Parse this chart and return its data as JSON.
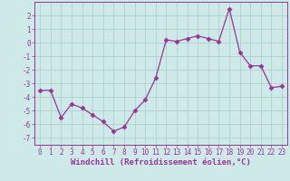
{
  "x": [
    0,
    1,
    2,
    3,
    4,
    5,
    6,
    7,
    8,
    9,
    10,
    11,
    12,
    13,
    14,
    15,
    16,
    17,
    18,
    19,
    20,
    21,
    22,
    23
  ],
  "y": [
    -3.5,
    -3.5,
    -5.5,
    -4.5,
    -4.8,
    -5.3,
    -5.8,
    -6.5,
    -6.2,
    -5.0,
    -4.2,
    -2.6,
    0.2,
    0.1,
    0.3,
    0.5,
    0.3,
    0.1,
    2.5,
    -0.7,
    -1.7,
    -1.7,
    -3.3,
    -3.2
  ],
  "line_color": "#993399",
  "marker": "D",
  "marker_size": 2.5,
  "linewidth": 0.9,
  "xlabel": "Windchill (Refroidissement éolien,°C)",
  "xlabel_fontsize": 6.5,
  "ylim": [
    -7.5,
    3.0
  ],
  "xlim": [
    -0.5,
    23.5
  ],
  "yticks": [
    -7,
    -6,
    -5,
    -4,
    -3,
    -2,
    -1,
    0,
    1,
    2
  ],
  "xticks": [
    0,
    1,
    2,
    3,
    4,
    5,
    6,
    7,
    8,
    9,
    10,
    11,
    12,
    13,
    14,
    15,
    16,
    17,
    18,
    19,
    20,
    21,
    22,
    23
  ],
  "tick_fontsize": 5.5,
  "bg_color": "#ceeae8",
  "grid_color": "#a8ccc8",
  "spine_color": "#993399",
  "text_color": "#993399"
}
